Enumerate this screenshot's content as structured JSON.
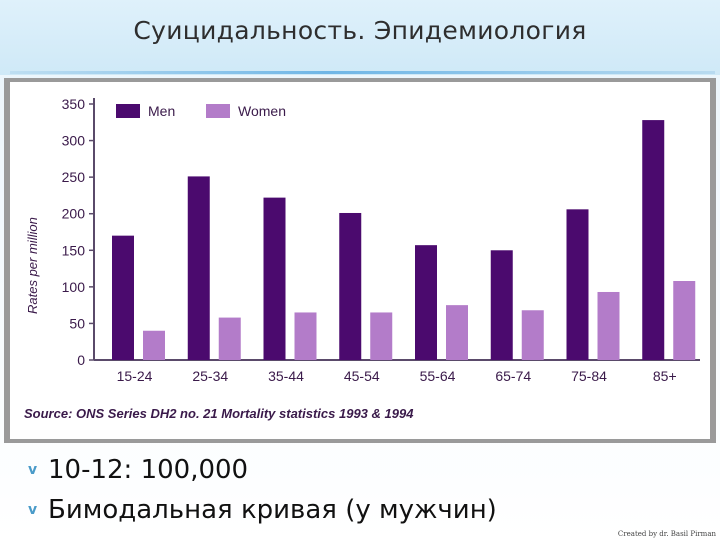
{
  "slide": {
    "title": "Суицидальность. Эпидемиология",
    "bullets": [
      {
        "marker": "v",
        "text": "10-12: 100,000"
      },
      {
        "marker": "v",
        "text": "Бимодальная кривая (у мужчин)"
      }
    ],
    "credit": "Created by dr. Basil Pirman"
  },
  "colors": {
    "men": "#4b0a6e",
    "women": "#b37cc9",
    "axis": "#5a4a6a",
    "text": "#3a1a4a"
  },
  "chart_data": {
    "type": "bar",
    "categories": [
      "15-24",
      "25-34",
      "35-44",
      "45-54",
      "55-64",
      "65-74",
      "75-84",
      "85+"
    ],
    "series": [
      {
        "name": "Men",
        "values": [
          170,
          251,
          222,
          201,
          157,
          150,
          206,
          328
        ]
      },
      {
        "name": "Women",
        "values": [
          40,
          58,
          65,
          65,
          75,
          68,
          93,
          108
        ]
      }
    ],
    "title": "",
    "xlabel": "",
    "ylabel": "Rates per million",
    "ylim": [
      0,
      350
    ],
    "yticks": [
      0,
      50,
      100,
      150,
      200,
      250,
      300,
      350
    ],
    "legend": "top-left",
    "grid": false,
    "source": "Source: ONS Series DH2 no. 21 Mortality statistics 1993 & 1994"
  }
}
